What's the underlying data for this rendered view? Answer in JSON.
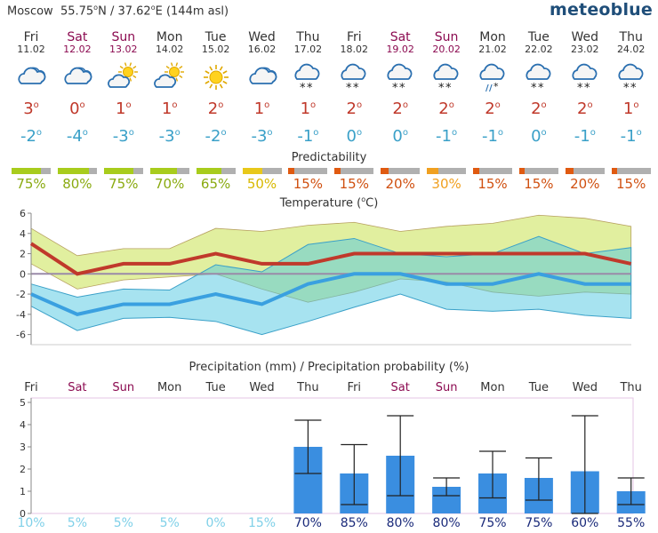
{
  "header": {
    "city": "Moscow",
    "lat_label": "55.75",
    "lat_suffix": "N",
    "separator": "/",
    "lon_label": "37.62",
    "lon_suffix": "E",
    "altitude": "(144m asl)",
    "degree": "o",
    "brand": "meteoblue"
  },
  "colors": {
    "weekend": "#8b0a50",
    "max_temp": "#c0392b",
    "min_temp": "#3aa0c8",
    "pred_high": "#a8cc1c",
    "pred_mid": "#e8c81a",
    "pred_orange": "#f0a020",
    "pred_low": "#e05a10",
    "bar_blue": "#3a8ee0"
  },
  "days": [
    {
      "name": "Fri",
      "date": "11.02",
      "weekend": false,
      "icon": "cloudy-icon",
      "tmax": "3",
      "tmin": "-2",
      "pred": 75,
      "pred_label": "75%",
      "precip_prob": "10%"
    },
    {
      "name": "Sat",
      "date": "12.02",
      "weekend": true,
      "icon": "cloudy-icon",
      "tmax": "0",
      "tmin": "-4",
      "pred": 80,
      "pred_label": "80%",
      "precip_prob": "5%"
    },
    {
      "name": "Sun",
      "date": "13.02",
      "weekend": true,
      "icon": "partly-sunny-icon",
      "tmax": "1",
      "tmin": "-3",
      "pred": 75,
      "pred_label": "75%",
      "precip_prob": "5%"
    },
    {
      "name": "Mon",
      "date": "14.02",
      "weekend": false,
      "icon": "partly-sunny-icon",
      "tmax": "1",
      "tmin": "-3",
      "pred": 70,
      "pred_label": "70%",
      "precip_prob": "5%"
    },
    {
      "name": "Tue",
      "date": "15.02",
      "weekend": false,
      "icon": "sunny-icon",
      "tmax": "2",
      "tmin": "-2",
      "pred": 65,
      "pred_label": "65%",
      "precip_prob": "0%"
    },
    {
      "name": "Wed",
      "date": "16.02",
      "weekend": false,
      "icon": "cloudy-icon",
      "tmax": "1",
      "tmin": "-3",
      "pred": 50,
      "pred_label": "50%",
      "precip_prob": "15%"
    },
    {
      "name": "Thu",
      "date": "17.02",
      "weekend": false,
      "icon": "snow-icon",
      "tmax": "1",
      "tmin": "-1",
      "pred": 15,
      "pred_label": "15%",
      "precip_prob": "70%"
    },
    {
      "name": "Fri",
      "date": "18.02",
      "weekend": false,
      "icon": "snow-icon",
      "tmax": "2",
      "tmin": "0",
      "pred": 15,
      "pred_label": "15%",
      "precip_prob": "85%"
    },
    {
      "name": "Sat",
      "date": "19.02",
      "weekend": true,
      "icon": "snow-icon",
      "tmax": "2",
      "tmin": "0",
      "pred": 20,
      "pred_label": "20%",
      "precip_prob": "80%"
    },
    {
      "name": "Sun",
      "date": "20.02",
      "weekend": true,
      "icon": "snow-icon",
      "tmax": "2",
      "tmin": "-1",
      "pred": 30,
      "pred_label": "30%",
      "precip_prob": "80%"
    },
    {
      "name": "Mon",
      "date": "21.02",
      "weekend": false,
      "icon": "sleet-icon",
      "tmax": "2",
      "tmin": "-1",
      "pred": 15,
      "pred_label": "15%",
      "precip_prob": "75%"
    },
    {
      "name": "Tue",
      "date": "22.02",
      "weekend": false,
      "icon": "snow-icon",
      "tmax": "2",
      "tmin": "0",
      "pred": 15,
      "pred_label": "15%",
      "precip_prob": "75%"
    },
    {
      "name": "Wed",
      "date": "23.02",
      "weekend": false,
      "icon": "snow-icon",
      "tmax": "2",
      "tmin": "-1",
      "pred": 20,
      "pred_label": "20%",
      "precip_prob": "60%"
    },
    {
      "name": "Thu",
      "date": "24.02",
      "weekend": false,
      "icon": "snow-icon",
      "tmax": "1",
      "tmin": "-1",
      "pred": 15,
      "pred_label": "15%",
      "precip_prob": "55%"
    }
  ],
  "chart_data": [
    {
      "type": "line",
      "title": "Temperature (°C)",
      "title_text": "Temperature (",
      "title_unit": "C)",
      "categories": [
        "Fri",
        "Sat",
        "Sun",
        "Mon",
        "Tue",
        "Wed",
        "Thu",
        "Fri",
        "Sat",
        "Sun",
        "Mon",
        "Tue",
        "Wed",
        "Thu"
      ],
      "ylim": [
        -7,
        6
      ],
      "yticks": [
        -6,
        -4,
        -2,
        0,
        2,
        4,
        6
      ],
      "grid": false,
      "series": [
        {
          "name": "max",
          "values": [
            3,
            0,
            1,
            1,
            2,
            1,
            1,
            2,
            2,
            2,
            2,
            2,
            2,
            1
          ]
        },
        {
          "name": "min",
          "values": [
            -2,
            -4,
            -3,
            -3,
            -2,
            -3,
            -1,
            0,
            0,
            -1,
            -1,
            0,
            -1,
            -1
          ]
        },
        {
          "name": "max_range_upper",
          "values": [
            4.5,
            1.8,
            2.5,
            2.5,
            4.5,
            4.2,
            4.8,
            5.1,
            4.2,
            4.7,
            5.0,
            5.8,
            5.5,
            4.7
          ]
        },
        {
          "name": "max_range_lower",
          "values": [
            1.0,
            -1.5,
            -0.6,
            -0.3,
            0,
            -1.5,
            -2.8,
            -1.8,
            -0.5,
            -0.8,
            -1.8,
            -2.2,
            -1.8,
            -2.0
          ]
        },
        {
          "name": "min_range_upper",
          "values": [
            -1.0,
            -2.3,
            -1.5,
            -1.6,
            0.9,
            0.2,
            2.9,
            3.5,
            2.0,
            1.7,
            2.0,
            3.7,
            2.0,
            2.6
          ]
        },
        {
          "name": "min_range_lower",
          "values": [
            -3.2,
            -5.6,
            -4.4,
            -4.3,
            -4.7,
            -6.0,
            -4.7,
            -3.3,
            -2.0,
            -3.5,
            -3.7,
            -3.5,
            -4.1,
            -4.4
          ]
        }
      ]
    },
    {
      "type": "bar",
      "title": "Precipitation (mm) / Precipitation probability (%)",
      "categories": [
        "Fri",
        "Sat",
        "Sun",
        "Mon",
        "Tue",
        "Wed",
        "Thu",
        "Fri",
        "Sat",
        "Sun",
        "Mon",
        "Tue",
        "Wed",
        "Thu"
      ],
      "ylim": [
        0,
        5.2
      ],
      "yticks": [
        0,
        1,
        2,
        3,
        4,
        5
      ],
      "series": [
        {
          "name": "precipitation",
          "values": [
            0,
            0,
            0,
            0,
            0,
            0,
            3.0,
            1.8,
            2.6,
            1.2,
            1.8,
            1.6,
            1.9,
            1.0
          ]
        },
        {
          "name": "spread_low",
          "values": [
            null,
            null,
            null,
            null,
            null,
            null,
            1.8,
            0.4,
            0.8,
            0.8,
            0.7,
            0.6,
            0.0,
            0.4
          ]
        },
        {
          "name": "spread_high",
          "values": [
            null,
            null,
            null,
            null,
            null,
            null,
            4.2,
            3.1,
            4.4,
            1.6,
            2.8,
            2.5,
            4.4,
            1.6
          ]
        }
      ],
      "probabilities": [
        "10%",
        "5%",
        "5%",
        "5%",
        "0%",
        "15%",
        "70%",
        "85%",
        "80%",
        "80%",
        "75%",
        "75%",
        "60%",
        "55%"
      ]
    }
  ],
  "labels": {
    "predictability": "Predictability"
  }
}
